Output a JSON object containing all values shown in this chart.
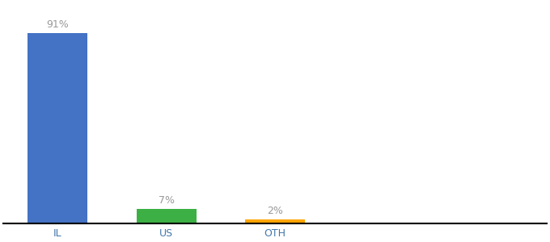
{
  "categories": [
    "IL",
    "US",
    "OTH"
  ],
  "values": [
    91,
    7,
    2
  ],
  "bar_colors": [
    "#4472C4",
    "#3CB044",
    "#FFA500"
  ],
  "labels": [
    "91%",
    "7%",
    "2%"
  ],
  "background_color": "#ffffff",
  "ylim": [
    0,
    105
  ],
  "bar_width": 0.55,
  "label_color": "#999999",
  "label_fontsize": 9,
  "tick_color": "#4477aa",
  "tick_fontsize": 9,
  "spine_color": "#000000",
  "x_positions": [
    0,
    1,
    2
  ],
  "xlim": [
    -0.5,
    4.5
  ]
}
